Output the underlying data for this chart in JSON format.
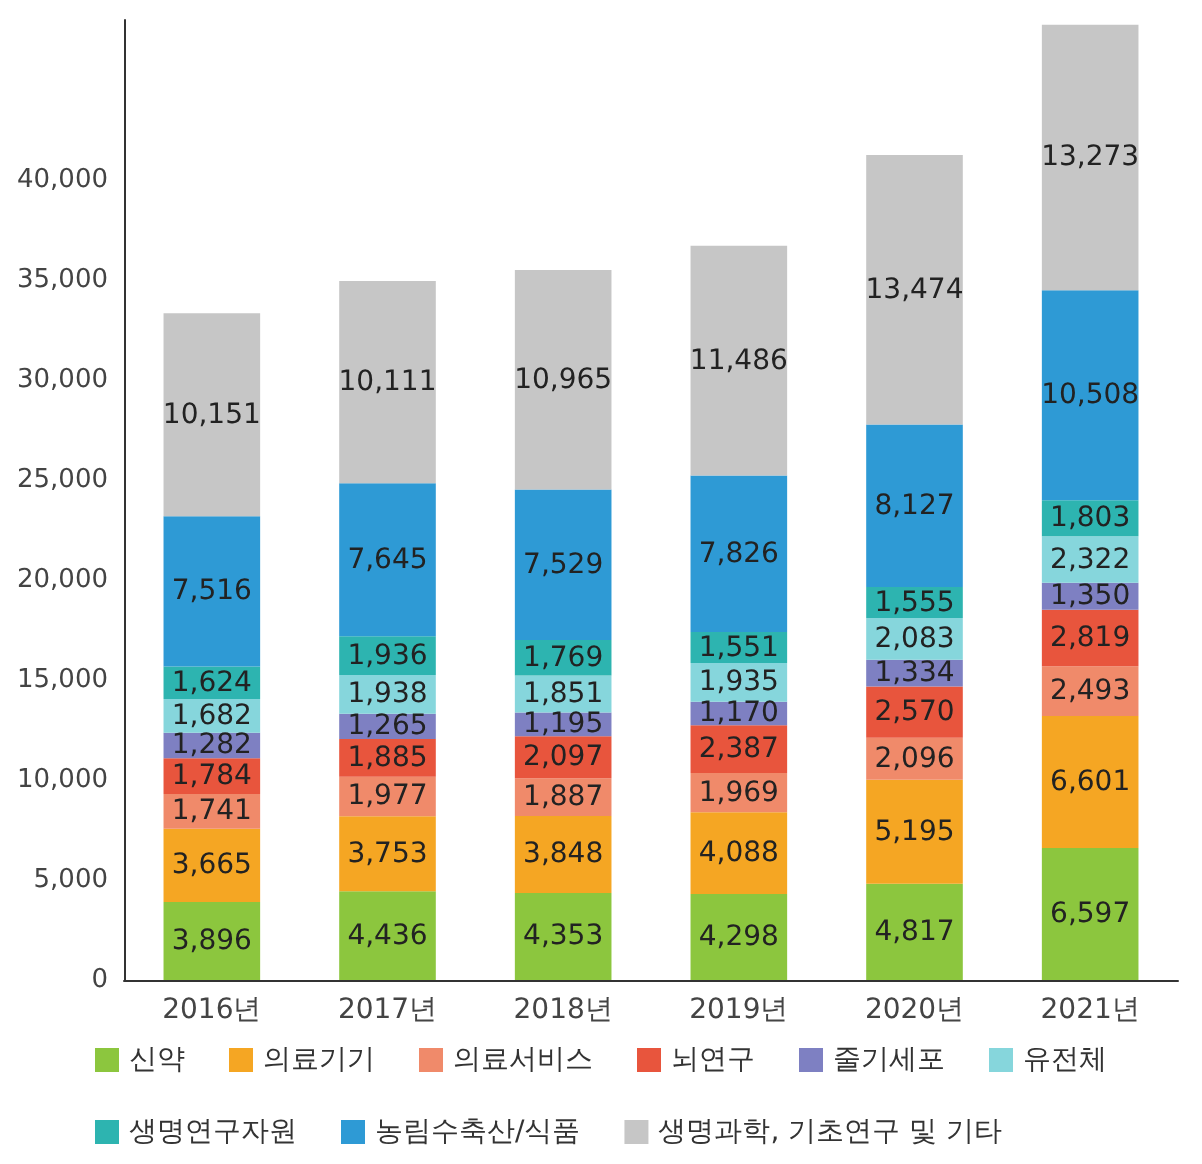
{
  "chart_data": {
    "type": "bar",
    "stacked": true,
    "categories": [
      "2016년",
      "2017년",
      "2018년",
      "2019년",
      "2020년",
      "2021년"
    ],
    "ylim": [
      0,
      48000
    ],
    "yticks": [
      {
        "value": 0,
        "label": "0"
      },
      {
        "value": 5000,
        "label": "5,000"
      },
      {
        "value": 10000,
        "label": "10,000"
      },
      {
        "value": 15000,
        "label": "15,000"
      },
      {
        "value": 20000,
        "label": "20,000"
      },
      {
        "value": 25000,
        "label": "25,000"
      },
      {
        "value": 30000,
        "label": "30,000"
      },
      {
        "value": 35000,
        "label": "35,000"
      },
      {
        "value": 40000,
        "label": "40,000"
      }
    ],
    "grid": false,
    "legend": "bottom",
    "series": [
      {
        "name": "신약",
        "color": "#8cc63e",
        "values": [
          3896,
          4436,
          4353,
          4298,
          4817,
          6597
        ],
        "value_labels": [
          "3,896",
          "4,436",
          "4,353",
          "4,298",
          "4,817",
          "6,597"
        ]
      },
      {
        "name": "의료기기",
        "color": "#f5a623",
        "values": [
          3665,
          3753,
          3848,
          4088,
          5195,
          6601
        ],
        "value_labels": [
          "3,665",
          "3,753",
          "3,848",
          "4,088",
          "5,195",
          "6,601"
        ]
      },
      {
        "name": "의료서비스",
        "color": "#f08a6a",
        "values": [
          1741,
          1977,
          1887,
          1969,
          2096,
          2493
        ],
        "value_labels": [
          "1,741",
          "1,977",
          "1,887",
          "1,969",
          "2,096",
          "2,493"
        ]
      },
      {
        "name": "뇌연구",
        "color": "#e8553d",
        "values": [
          1784,
          1885,
          2097,
          2387,
          2570,
          2819
        ],
        "value_labels": [
          "1,784",
          "1,885",
          "2,097",
          "2,387",
          "2,570",
          "2,819"
        ]
      },
      {
        "name": "줄기세포",
        "color": "#7e80c2",
        "values": [
          1282,
          1265,
          1195,
          1170,
          1334,
          1350
        ],
        "value_labels": [
          "1,282",
          "1,265",
          "1,195",
          "1,170",
          "1,334",
          "1,350"
        ]
      },
      {
        "name": "유전체",
        "color": "#86d6dc",
        "values": [
          1682,
          1938,
          1851,
          1935,
          2083,
          2322
        ],
        "value_labels": [
          "1,682",
          "1,938",
          "1,851",
          "1,935",
          "2,083",
          "2,322"
        ]
      },
      {
        "name": "생명연구자원",
        "color": "#2db4b0",
        "values": [
          1624,
          1936,
          1769,
          1551,
          1555,
          1803
        ],
        "value_labels": [
          "1,624",
          "1,936",
          "1,769",
          "1,551",
          "1,555",
          "1,803"
        ]
      },
      {
        "name": "농림수축산/식품",
        "color": "#2e9ad5",
        "values": [
          7516,
          7645,
          7529,
          7826,
          8127,
          10508
        ],
        "value_labels": [
          "7,516",
          "7,645",
          "7,529",
          "7,826",
          "8,127",
          "10,508"
        ]
      },
      {
        "name": "생명과학, 기초연구 및 기타",
        "color": "#c6c6c6",
        "values": [
          10151,
          10111,
          10965,
          11486,
          13474,
          13273
        ],
        "value_labels": [
          "10,151",
          "10,111",
          "10,965",
          "11,486",
          "13,474",
          "13,273"
        ]
      }
    ]
  }
}
